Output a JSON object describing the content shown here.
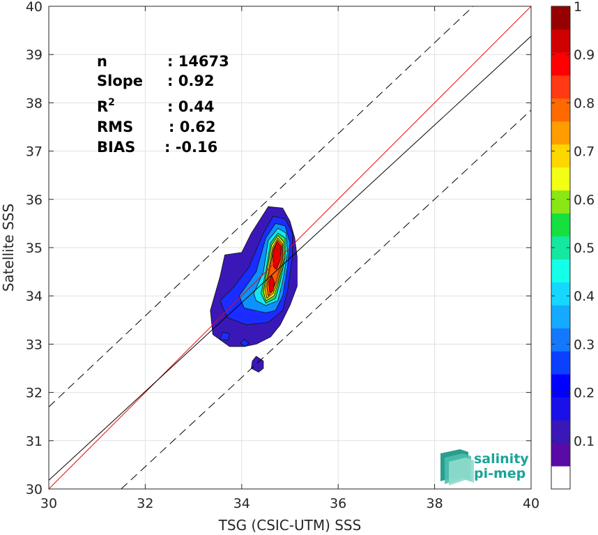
{
  "chart_data": {
    "type": "heatmap",
    "xlabel": "TSG (CSIC-UTM) SSS",
    "ylabel": "Satellite SSS",
    "xlim": [
      30,
      40
    ],
    "ylim": [
      30,
      40
    ],
    "xticks": [
      30,
      32,
      34,
      36,
      38,
      40
    ],
    "yticks": [
      30,
      31,
      32,
      33,
      34,
      35,
      36,
      37,
      38,
      39,
      40
    ],
    "grid": true,
    "stats": [
      {
        "label": "n",
        "value": ": 14673"
      },
      {
        "label": "Slope",
        "value": ": 0.92"
      },
      {
        "label": "R",
        "sup": "2",
        "value": ": 0.44"
      },
      {
        "label": "RMS",
        "value": ": 0.62"
      },
      {
        "label": "BIAS",
        "value": ": -0.16"
      }
    ],
    "lines": [
      {
        "kind": "identity",
        "color": "#ff0000",
        "dash": "solid",
        "points": [
          [
            30,
            30
          ],
          [
            40,
            40
          ]
        ]
      },
      {
        "kind": "regression",
        "color": "#000000",
        "dash": "solid",
        "points": [
          [
            30,
            30.18
          ],
          [
            40,
            39.38
          ]
        ]
      },
      {
        "kind": "upper-bound",
        "color": "#000000",
        "dash": "dashed",
        "points": [
          [
            30,
            31.7
          ],
          [
            38.8,
            40
          ]
        ]
      },
      {
        "kind": "lower-bound",
        "color": "#000000",
        "dash": "dashed",
        "points": [
          [
            31.5,
            30
          ],
          [
            40,
            37.85
          ]
        ]
      }
    ],
    "density_contours": [
      {
        "level": 0.05,
        "color": "#3a18b8",
        "points": [
          [
            34.05,
            32.95
          ],
          [
            33.75,
            32.95
          ],
          [
            33.4,
            33.2
          ],
          [
            33.35,
            33.7
          ],
          [
            33.55,
            34.4
          ],
          [
            33.65,
            34.85
          ],
          [
            34.0,
            34.9
          ],
          [
            34.2,
            35.3
          ],
          [
            34.55,
            35.85
          ],
          [
            34.85,
            35.82
          ],
          [
            35.0,
            35.55
          ],
          [
            35.1,
            35.2
          ],
          [
            35.15,
            34.8
          ],
          [
            35.15,
            34.2
          ],
          [
            35.0,
            33.8
          ],
          [
            34.8,
            33.4
          ],
          [
            34.6,
            33.15
          ],
          [
            34.3,
            33.0
          ]
        ]
      },
      {
        "level": 0.05,
        "color": "#3a18b8",
        "points": [
          [
            34.3,
            32.75
          ],
          [
            34.45,
            32.65
          ],
          [
            34.45,
            32.5
          ],
          [
            34.35,
            32.42
          ],
          [
            34.2,
            32.5
          ],
          [
            34.22,
            32.65
          ]
        ]
      },
      {
        "level": 0.15,
        "color": "#1a2cff",
        "points": [
          [
            34.55,
            33.45
          ],
          [
            34.1,
            33.4
          ],
          [
            33.7,
            33.55
          ],
          [
            33.55,
            33.9
          ],
          [
            33.85,
            34.2
          ],
          [
            34.15,
            34.6
          ],
          [
            34.45,
            35.3
          ],
          [
            34.65,
            35.65
          ],
          [
            34.9,
            35.6
          ],
          [
            35.05,
            35.3
          ],
          [
            35.05,
            34.8
          ],
          [
            34.95,
            34.1
          ],
          [
            34.85,
            33.7
          ]
        ]
      },
      {
        "level": 0.25,
        "color": "#0c92ff",
        "points": [
          [
            34.5,
            33.65
          ],
          [
            34.05,
            33.75
          ],
          [
            33.95,
            34.0
          ],
          [
            34.3,
            34.5
          ],
          [
            34.5,
            35.2
          ],
          [
            34.7,
            35.5
          ],
          [
            34.9,
            35.45
          ],
          [
            35.0,
            35.1
          ],
          [
            34.95,
            34.6
          ],
          [
            34.85,
            34.0
          ],
          [
            34.7,
            33.7
          ]
        ]
      },
      {
        "level": 0.35,
        "color": "#14e6f0",
        "points": [
          [
            34.5,
            33.8
          ],
          [
            34.3,
            33.9
          ],
          [
            34.25,
            34.05
          ],
          [
            34.45,
            34.5
          ],
          [
            34.55,
            35.15
          ],
          [
            34.75,
            35.4
          ],
          [
            34.92,
            35.3
          ],
          [
            34.95,
            34.9
          ],
          [
            34.85,
            34.3
          ],
          [
            34.75,
            33.9
          ]
        ]
      },
      {
        "level": 0.5,
        "color": "#2ee05c",
        "points": [
          [
            34.5,
            33.85
          ],
          [
            34.4,
            34.05
          ],
          [
            34.5,
            34.5
          ],
          [
            34.6,
            35.1
          ],
          [
            34.75,
            35.3
          ],
          [
            34.9,
            35.2
          ],
          [
            34.9,
            34.8
          ],
          [
            34.8,
            34.3
          ],
          [
            34.7,
            33.95
          ]
        ]
      },
      {
        "level": 0.6,
        "color": "#f2f20a",
        "points": [
          [
            34.5,
            33.9
          ],
          [
            34.45,
            34.1
          ],
          [
            34.52,
            34.5
          ],
          [
            34.62,
            35.05
          ],
          [
            34.75,
            35.25
          ],
          [
            34.87,
            35.12
          ],
          [
            34.87,
            34.75
          ],
          [
            34.77,
            34.3
          ],
          [
            34.67,
            34.0
          ]
        ]
      },
      {
        "level": 0.75,
        "color": "#ffa800",
        "points": [
          [
            34.52,
            33.95
          ],
          [
            34.48,
            34.15
          ],
          [
            34.55,
            34.5
          ],
          [
            34.64,
            35.0
          ],
          [
            34.75,
            35.2
          ],
          [
            34.85,
            35.08
          ],
          [
            34.85,
            34.75
          ],
          [
            34.75,
            34.3
          ],
          [
            34.65,
            34.05
          ]
        ]
      },
      {
        "level": 0.85,
        "color": "#ff5a00",
        "points": [
          [
            34.55,
            34.0
          ],
          [
            34.52,
            34.2
          ],
          [
            34.57,
            34.5
          ],
          [
            34.66,
            34.98
          ],
          [
            34.75,
            35.15
          ],
          [
            34.83,
            35.05
          ],
          [
            34.83,
            34.75
          ],
          [
            34.72,
            34.3
          ],
          [
            34.62,
            34.08
          ]
        ]
      },
      {
        "level": 0.95,
        "color": "#e40000",
        "points": [
          [
            34.66,
            34.6
          ],
          [
            34.64,
            34.9
          ],
          [
            34.73,
            35.12
          ],
          [
            34.82,
            35.02
          ],
          [
            34.8,
            34.75
          ],
          [
            34.72,
            34.55
          ]
        ]
      },
      {
        "level": 0.95,
        "color": "#e40000",
        "points": [
          [
            34.58,
            34.08
          ],
          [
            34.56,
            34.3
          ],
          [
            34.62,
            34.42
          ],
          [
            34.68,
            34.28
          ],
          [
            34.65,
            34.1
          ]
        ]
      },
      {
        "level": 0.2,
        "color": "#1a2cff",
        "points": [
          [
            33.55,
            33.1
          ],
          [
            33.6,
            33.25
          ],
          [
            33.75,
            33.22
          ],
          [
            33.72,
            33.08
          ]
        ]
      },
      {
        "level": 0.2,
        "color": "#1a2cff",
        "points": [
          [
            33.97,
            33.02
          ],
          [
            34.05,
            33.1
          ],
          [
            34.15,
            33.02
          ],
          [
            34.08,
            32.95
          ]
        ]
      }
    ],
    "colorbar": {
      "min": 0,
      "max": 1,
      "ticks": [
        0.1,
        0.2,
        0.3,
        0.4,
        0.5,
        0.6,
        0.7,
        0.8,
        0.9,
        1
      ],
      "tick_labels": [
        "0.1",
        "0.2",
        "0.3",
        "0.4",
        "0.5",
        "0.6",
        "0.7",
        "0.8",
        "0.9",
        "1"
      ],
      "colors": [
        "#ffffff",
        "#5a0aa6",
        "#3a18b8",
        "#1a10e8",
        "#0000ff",
        "#0c40ff",
        "#1478ff",
        "#14aaff",
        "#14d8ff",
        "#14ffe8",
        "#14e8a0",
        "#14e040",
        "#8ae614",
        "#f2ff14",
        "#ffd700",
        "#ff9c00",
        "#ff6a00",
        "#ff3a14",
        "#ff0000",
        "#d00000",
        "#960000"
      ]
    }
  },
  "logo": {
    "line1": "salinity",
    "line2": "pi-mep"
  }
}
